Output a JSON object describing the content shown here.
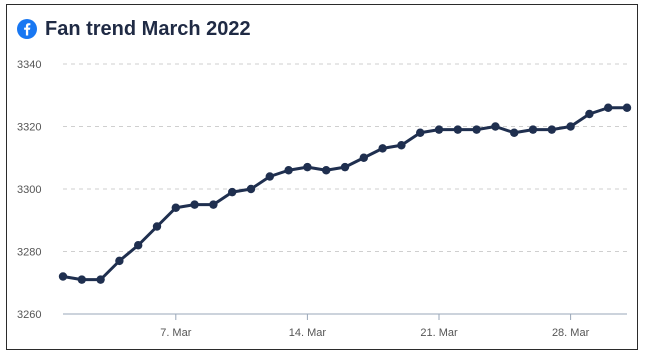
{
  "header": {
    "title": "Fan trend March 2022",
    "brand_icon": "facebook-icon",
    "brand_color": "#1877f2"
  },
  "chart_data": {
    "type": "line",
    "title": "Fan trend March 2022",
    "xlabel": "",
    "ylabel": "",
    "ylim": [
      3260,
      3340
    ],
    "yticks": [
      3260,
      3280,
      3300,
      3320,
      3340
    ],
    "xticks": [
      {
        "day": 7,
        "label": "7. Mar"
      },
      {
        "day": 14,
        "label": "14. Mar"
      },
      {
        "day": 21,
        "label": "21. Mar"
      },
      {
        "day": 28,
        "label": "28. Mar"
      }
    ],
    "grid": true,
    "line_color": "#1f2f4f",
    "series": [
      {
        "name": "",
        "x": [
          1,
          2,
          3,
          4,
          5,
          6,
          7,
          8,
          9,
          10,
          11,
          12,
          13,
          14,
          15,
          16,
          17,
          18,
          19,
          20,
          21,
          22,
          23,
          24,
          25,
          26,
          27,
          28,
          29,
          30,
          31
        ],
        "values": [
          3272,
          3271,
          3271,
          3277,
          3282,
          3288,
          3294,
          3295,
          3295,
          3299,
          3300,
          3304,
          3306,
          3307,
          3306,
          3307,
          3310,
          3313,
          3314,
          3318,
          3319,
          3319,
          3319,
          3320,
          3318,
          3319,
          3319,
          3320,
          3324,
          3326,
          3326
        ]
      }
    ]
  }
}
